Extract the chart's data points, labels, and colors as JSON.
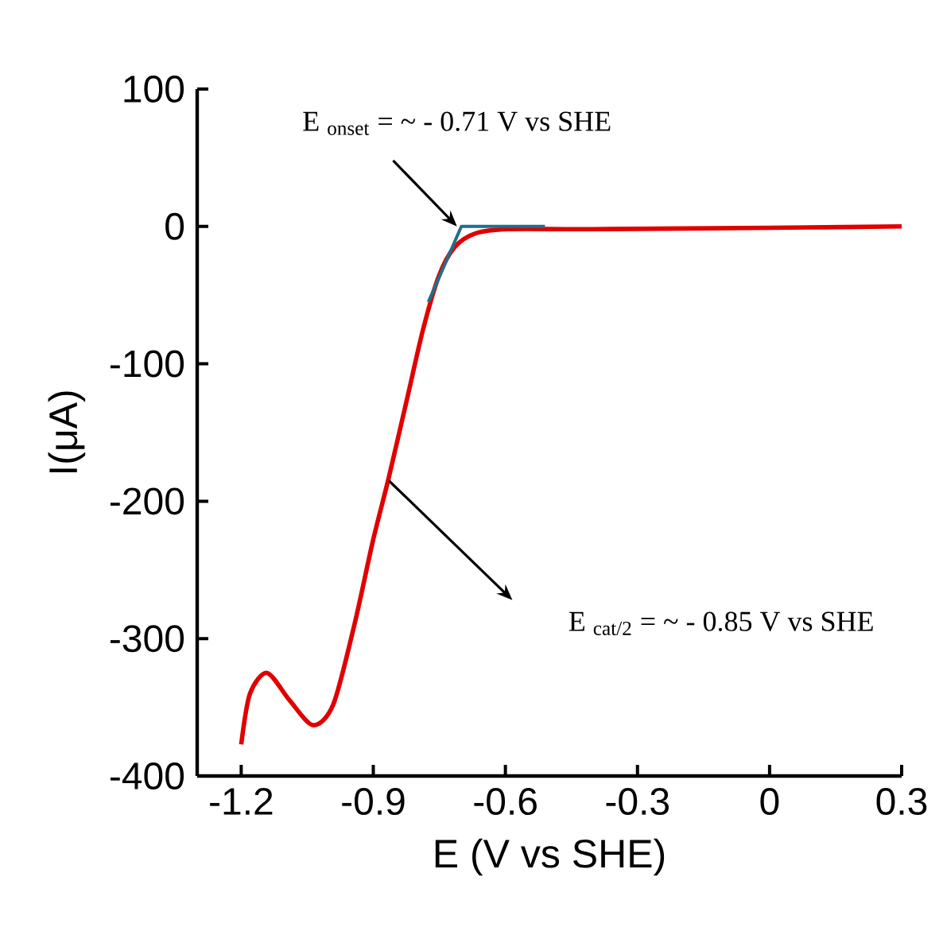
{
  "chart_data": {
    "type": "line",
    "xlabel": "E (V vs SHE)",
    "ylabel": "I(μA)",
    "xlim": [
      -1.3,
      0.3
    ],
    "ylim": [
      -400,
      100
    ],
    "xticks": [
      -1.2,
      -0.9,
      -0.6,
      -0.3,
      0,
      0.3
    ],
    "yticks": [
      -400,
      -300,
      -200,
      -100,
      0,
      100
    ],
    "marker": "none",
    "line_style": "solid",
    "series": [
      {
        "color": "#e00000",
        "x": [
          -1.2,
          -1.18,
          -1.141,
          -1.09,
          -1.037,
          -0.991,
          -0.943,
          -0.901,
          -0.865,
          -0.823,
          -0.787,
          -0.751,
          -0.715,
          -0.667,
          -0.595,
          -0.4,
          0,
          0.3
        ],
        "values": [
          -377,
          -340,
          -325,
          -345,
          -363,
          -348,
          -290,
          -229,
          -183,
          -125,
          -75,
          -36,
          -15,
          -5,
          -2,
          -2,
          -1,
          0
        ]
      },
      {
        "color": "#1f6e8c",
        "x": [
          -0.775,
          -0.7,
          -0.51
        ],
        "values": [
          -55,
          0,
          0
        ]
      }
    ],
    "annotations": [
      {
        "text": "E $_{onset}$ = ~ - 0.71 V vs SHE",
        "x": -0.71,
        "y": 0
      },
      "E $_{cat/2}$ = ~ - 0.85 V vs SHE"
    ]
  }
}
